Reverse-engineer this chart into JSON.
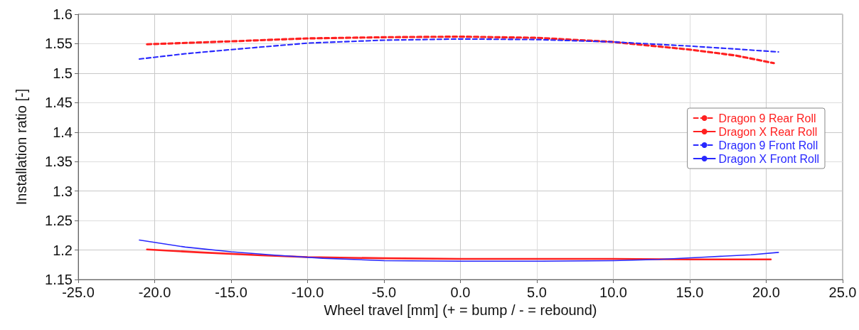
{
  "chart_data": {
    "type": "line",
    "xlabel": "Wheel travel [mm] (+ = bump / - = rebound)",
    "ylabel": "Installation ratio [-]",
    "xlim": [
      -25,
      25
    ],
    "xticks": [
      {
        "value": -25,
        "label": "-25.0"
      },
      {
        "value": -20,
        "label": "-20.0"
      },
      {
        "value": -15,
        "label": "-15.0"
      },
      {
        "value": -10,
        "label": "-10.0"
      },
      {
        "value": -5,
        "label": "-5.0"
      },
      {
        "value": 0,
        "label": "0.0"
      },
      {
        "value": 5,
        "label": "5.0"
      },
      {
        "value": 10,
        "label": "10.0"
      },
      {
        "value": 15,
        "label": "15.0"
      },
      {
        "value": 20,
        "label": "20.0"
      },
      {
        "value": 25,
        "label": "25.0"
      }
    ],
    "ylim": [
      1.15,
      1.6
    ],
    "yticks": [
      1.15,
      1.2,
      1.25,
      1.3,
      1.35,
      1.4,
      1.45,
      1.5,
      1.55,
      1.6
    ],
    "grid": true,
    "legend": "right",
    "marker": "none",
    "series": [
      {
        "name": "Dragon 9 Rear Roll",
        "color": "#ff2020",
        "line_style": "dashed",
        "x": [
          -20.5,
          -15,
          -10,
          -5,
          0,
          5,
          10,
          15,
          18,
          20.5
        ],
        "values": [
          1.549,
          1.554,
          1.559,
          1.561,
          1.562,
          1.56,
          1.553,
          1.54,
          1.53,
          1.517
        ]
      },
      {
        "name": "Dragon X Rear Roll",
        "color": "#ff2020",
        "line_style": "solid",
        "x": [
          -20.5,
          -17,
          -13,
          -10,
          -5,
          0,
          5,
          10,
          15,
          20.3
        ],
        "values": [
          1.201,
          1.196,
          1.191,
          1.188,
          1.186,
          1.185,
          1.185,
          1.185,
          1.184,
          1.184
        ]
      },
      {
        "name": "Dragon 9 Front Roll",
        "color": "#2828ff",
        "line_style": "dashed",
        "x": [
          -21,
          -18,
          -15,
          -10,
          -5,
          0,
          5,
          10,
          15,
          18,
          20.8
        ],
        "values": [
          1.524,
          1.533,
          1.54,
          1.551,
          1.556,
          1.558,
          1.557,
          1.553,
          1.546,
          1.541,
          1.536
        ]
      },
      {
        "name": "Dragon X Front Roll",
        "color": "#2828ff",
        "line_style": "solid",
        "x": [
          -21,
          -18,
          -15,
          -12,
          -9,
          -5,
          0,
          5,
          10,
          13,
          16,
          19,
          20.8
        ],
        "values": [
          1.217,
          1.205,
          1.197,
          1.191,
          1.186,
          1.182,
          1.181,
          1.181,
          1.182,
          1.184,
          1.188,
          1.192,
          1.196
        ]
      }
    ]
  }
}
